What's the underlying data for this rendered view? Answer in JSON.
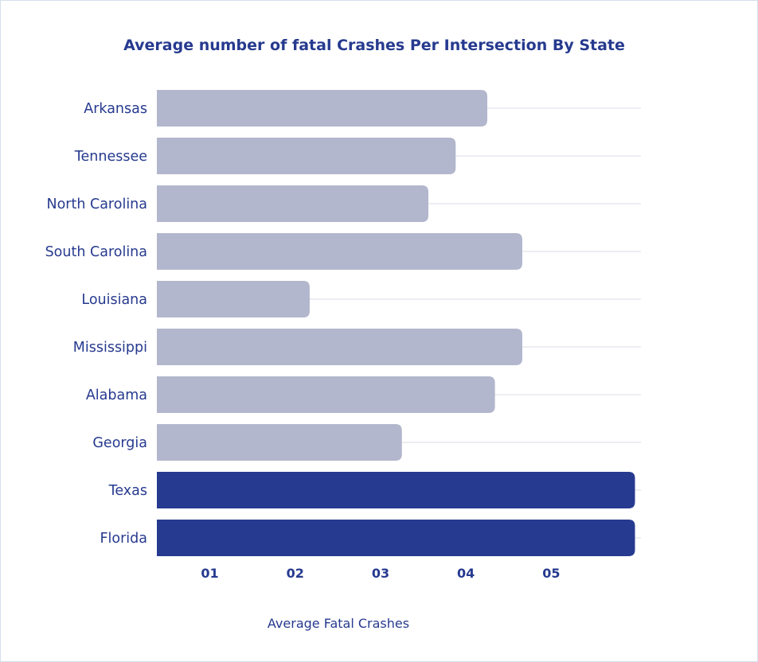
{
  "chart_data": {
    "type": "bar",
    "orientation": "horizontal",
    "title": "Average number of fatal Crashes Per Intersection By State",
    "xlabel": "Average Fatal Crashes",
    "ylabel": "",
    "categories": [
      "Arkansas",
      "Tennessee",
      "North Carolina",
      "South Carolina",
      "Louisiana",
      "Mississippi",
      "Alabama",
      "Georgia",
      "Texas",
      "Florida"
    ],
    "values": [
      4.25,
      3.88,
      3.56,
      4.66,
      2.17,
      4.66,
      4.34,
      3.25,
      5.98,
      5.98
    ],
    "x_ticks": [
      "01",
      "02",
      "03",
      "04",
      "05"
    ],
    "x_tick_values": [
      1,
      2,
      3,
      4,
      5
    ],
    "xlim": [
      0.38,
      6.05
    ],
    "highlight_categories": [
      "Texas",
      "Florida"
    ],
    "grid": true,
    "colors": {
      "bar": "#b3b7cd",
      "highlight": "#263a8f",
      "text": "#263a8f",
      "grid": "#eceef3"
    }
  }
}
